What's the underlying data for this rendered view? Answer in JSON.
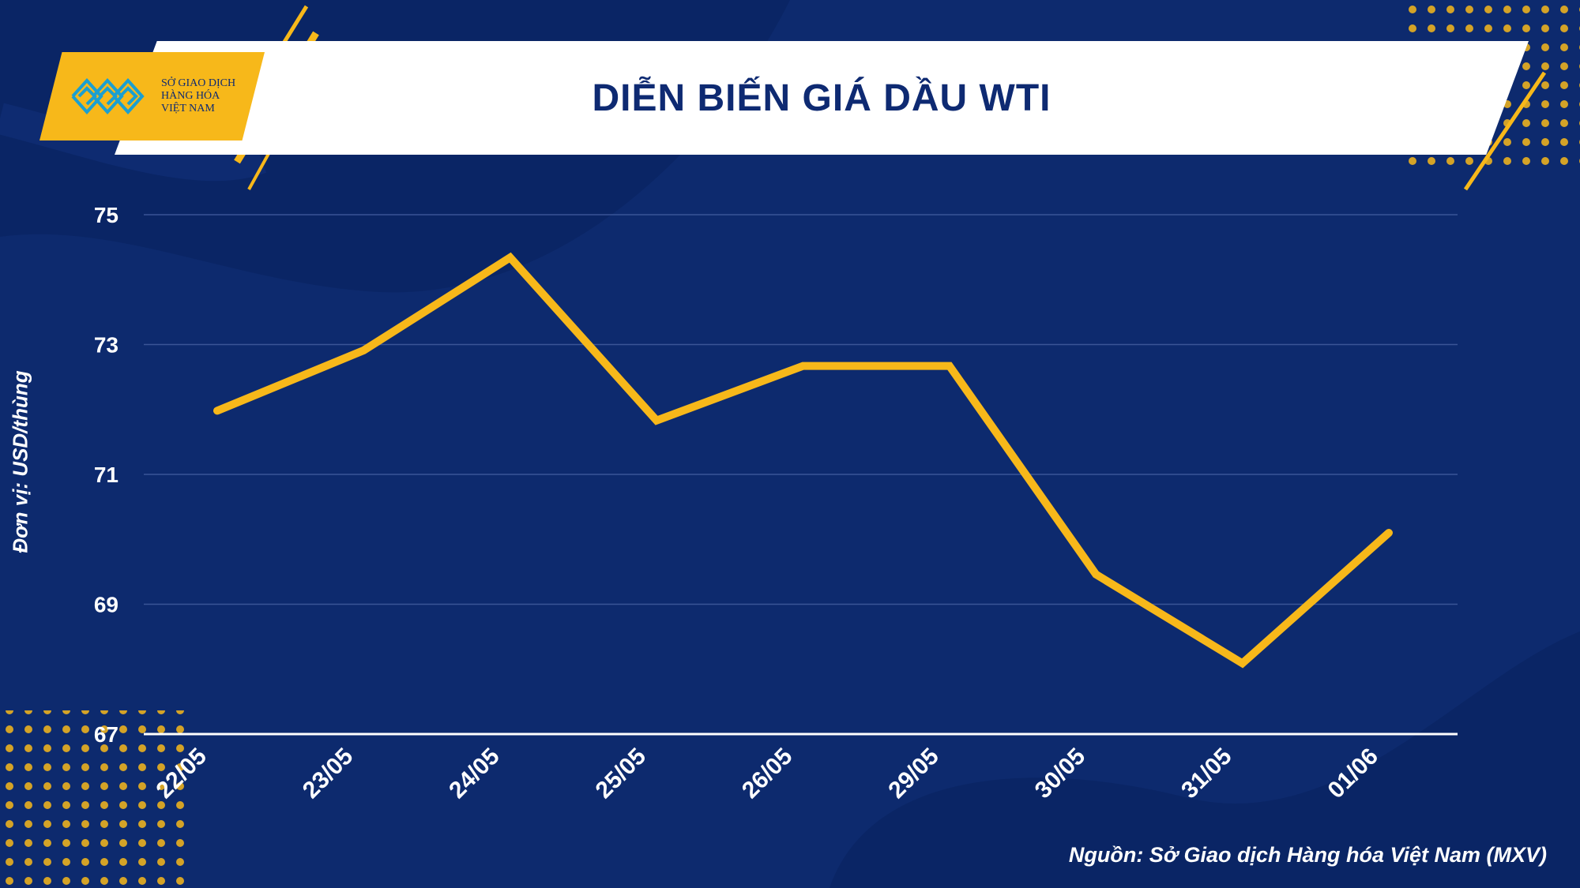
{
  "header": {
    "title": "DIỄN BIẾN GIÁ DẦU WTI",
    "logo_lines": [
      "SỞ GIAO DỊCH",
      "HÀNG HÓA",
      "VIỆT NAM"
    ]
  },
  "colors": {
    "background": "#0d2a6e",
    "line": "#f7b81a",
    "accent": "#f7b81a",
    "title_text": "#0e2a72"
  },
  "chart_data": {
    "type": "line",
    "title": "DIỄN BIẾN GIÁ DẦU WTI",
    "ylabel": "Đơn vị: USD/thùng",
    "xlabel": "",
    "categories": [
      "22/05",
      "23/05",
      "24/05",
      "25/05",
      "26/05",
      "29/05",
      "30/05",
      "31/05",
      "01/06"
    ],
    "series": [
      {
        "values": [
          71.98,
          72.91,
          74.34,
          71.83,
          72.67,
          72.67,
          69.46,
          68.09,
          70.1
        ]
      }
    ],
    "ylim": [
      67,
      75
    ],
    "yticks": [
      "75",
      "73",
      "71",
      "69",
      "67"
    ],
    "grid": true,
    "legend": "none"
  },
  "source": "Nguồn: Sở Giao dịch Hàng hóa Việt Nam (MXV)"
}
